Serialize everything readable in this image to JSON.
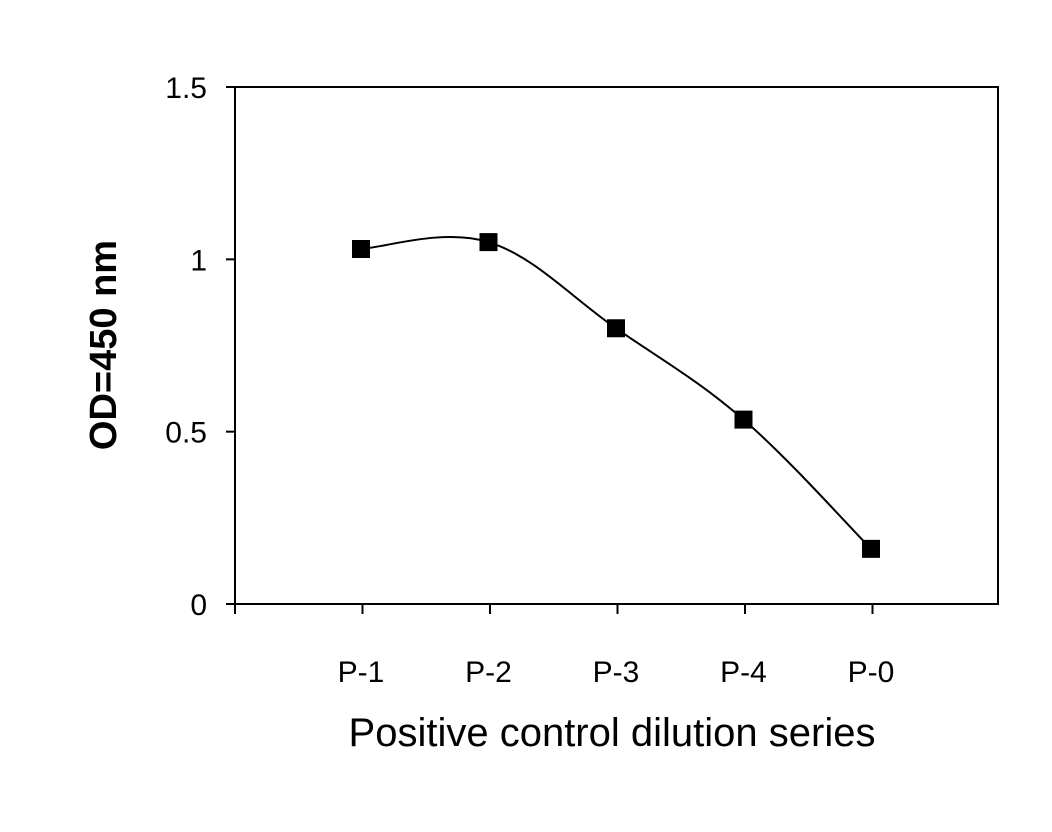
{
  "chart_data": {
    "type": "line",
    "title": "",
    "xlabel": "Positive control dilution series",
    "ylabel": "OD=450 nm",
    "categories": [
      "P-1",
      "P-2",
      "P-3",
      "P-4",
      "P-0"
    ],
    "series": [
      {
        "values": [
          1.03,
          1.05,
          0.8,
          0.535,
          0.16
        ],
        "marker": "square",
        "color": "#000000"
      }
    ],
    "ylim": [
      0,
      1.5
    ],
    "yticks": [
      "0",
      "0.5",
      "1",
      "1.5"
    ],
    "grid": false,
    "legend": "none"
  }
}
